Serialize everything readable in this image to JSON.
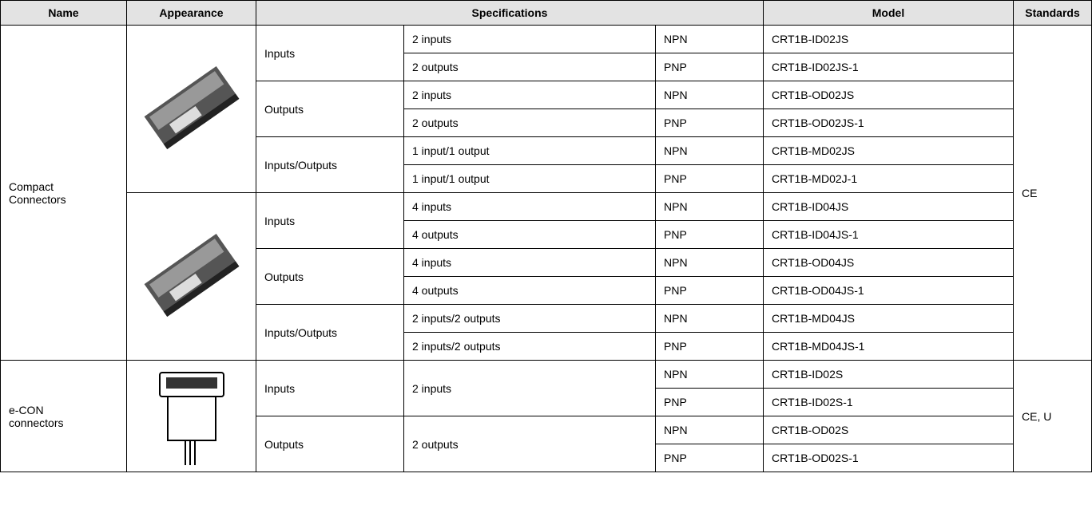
{
  "header": [
    "Name",
    "Appearance",
    "Specifications",
    "Model",
    "Standards"
  ],
  "groups": [
    {
      "name": "Compact\nConnectors",
      "standards": "CE",
      "blocks": [
        {
          "types": [
            {
              "label": "Inputs",
              "specs": [
                {
                  "text": "2 inputs",
                  "rows": [
                    {
                      "polarity": "NPN",
                      "model": "CRT1B-ID02JS"
                    }
                  ]
                },
                {
                  "text": "2 outputs",
                  "rows": [
                    {
                      "polarity": "PNP",
                      "model": "CRT1B-ID02JS-1"
                    }
                  ]
                }
              ]
            },
            {
              "label": "Outputs",
              "specs": [
                {
                  "text": "2 inputs",
                  "rows": [
                    {
                      "polarity": "NPN",
                      "model": "CRT1B-OD02JS"
                    }
                  ]
                },
                {
                  "text": "2 outputs",
                  "rows": [
                    {
                      "polarity": "PNP",
                      "model": "CRT1B-OD02JS-1"
                    }
                  ]
                }
              ]
            },
            {
              "label": "Inputs/Outputs",
              "specs": [
                {
                  "text": "1 input/1 output",
                  "rows": [
                    {
                      "polarity": "NPN",
                      "model": "CRT1B-MD02JS"
                    }
                  ]
                },
                {
                  "text": "1 input/1 output",
                  "rows": [
                    {
                      "polarity": "PNP",
                      "model": "CRT1B-MD02J-1"
                    }
                  ]
                }
              ]
            }
          ]
        },
        {
          "types": [
            {
              "label": "Inputs",
              "specs": [
                {
                  "text": "4 inputs",
                  "rows": [
                    {
                      "polarity": "NPN",
                      "model": "CRT1B-ID04JS"
                    }
                  ]
                },
                {
                  "text": "4 outputs",
                  "rows": [
                    {
                      "polarity": "PNP",
                      "model": "CRT1B-ID04JS-1"
                    }
                  ]
                }
              ]
            },
            {
              "label": "Outputs",
              "specs": [
                {
                  "text": "4 inputs",
                  "rows": [
                    {
                      "polarity": "NPN",
                      "model": "CRT1B-OD04JS"
                    }
                  ]
                },
                {
                  "text": "4 outputs",
                  "rows": [
                    {
                      "polarity": "PNP",
                      "model": "CRT1B-OD04JS-1"
                    }
                  ]
                }
              ]
            },
            {
              "label": "Inputs/Outputs",
              "specs": [
                {
                  "text": "2 inputs/2 outputs",
                  "rows": [
                    {
                      "polarity": "NPN",
                      "model": "CRT1B-MD04JS"
                    }
                  ]
                },
                {
                  "text": "2 inputs/2 outputs",
                  "rows": [
                    {
                      "polarity": "PNP",
                      "model": "CRT1B-MD04JS-1"
                    }
                  ]
                }
              ]
            }
          ]
        }
      ]
    },
    {
      "name": "e-CON\nconnectors",
      "standards": "CE, U",
      "blocks": [
        {
          "types": [
            {
              "label": "Inputs",
              "specs": [
                {
                  "text": "2 inputs",
                  "rows": [
                    {
                      "polarity": "NPN",
                      "model": "CRT1B-ID02S"
                    },
                    {
                      "polarity": "PNP",
                      "model": "CRT1B-ID02S-1"
                    }
                  ]
                }
              ]
            },
            {
              "label": "Outputs",
              "specs": [
                {
                  "text": "2 outputs",
                  "rows": [
                    {
                      "polarity": "NPN",
                      "model": "CRT1B-OD02S"
                    },
                    {
                      "polarity": "PNP",
                      "model": "CRT1B-OD02S-1"
                    }
                  ]
                }
              ]
            }
          ]
        }
      ]
    }
  ]
}
